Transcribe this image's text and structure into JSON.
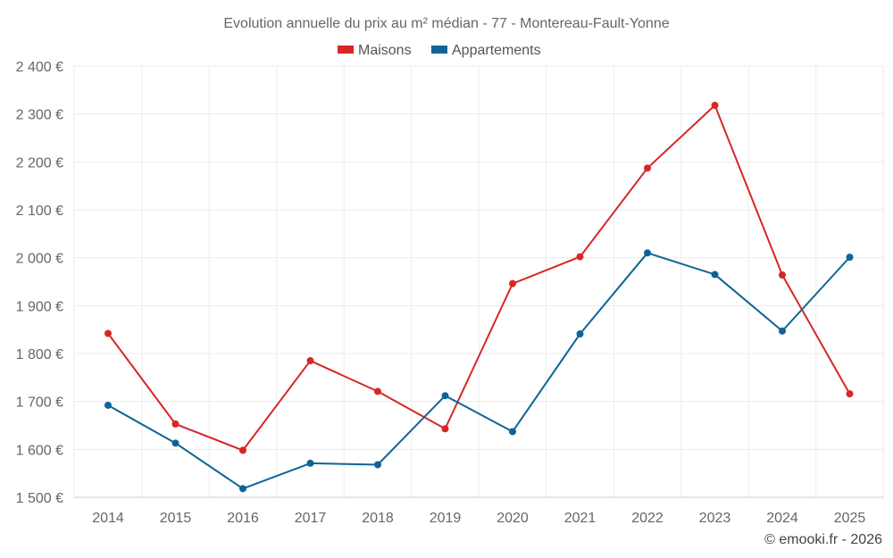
{
  "chart_data": {
    "type": "line",
    "title": "Evolution annuelle du prix au m² médian - 77 - Montereau-Fault-Yonne",
    "categories": [
      "2014",
      "2015",
      "2016",
      "2017",
      "2018",
      "2019",
      "2020",
      "2021",
      "2022",
      "2023",
      "2024",
      "2025"
    ],
    "series": [
      {
        "name": "Maisons",
        "color": "#d62728",
        "values": [
          1842,
          1653,
          1598,
          1785,
          1721,
          1643,
          1946,
          2002,
          2187,
          2318,
          1964,
          1716
        ]
      },
      {
        "name": "Appartements",
        "color": "#0e6496",
        "values": [
          1692,
          1613,
          1518,
          1571,
          1568,
          1712,
          1637,
          1841,
          2010,
          1965,
          1847,
          2001
        ]
      }
    ],
    "ylim": [
      1500,
      2400
    ],
    "yticks": [
      "1 500 €",
      "1 600 €",
      "1 700 €",
      "1 800 €",
      "1 900 €",
      "2 000 €",
      "2 100 €",
      "2 200 €",
      "2 300 €",
      "2 400 €"
    ],
    "grid": true,
    "legend_position": "top-center"
  },
  "credit": "© emooki.fr - 2026"
}
